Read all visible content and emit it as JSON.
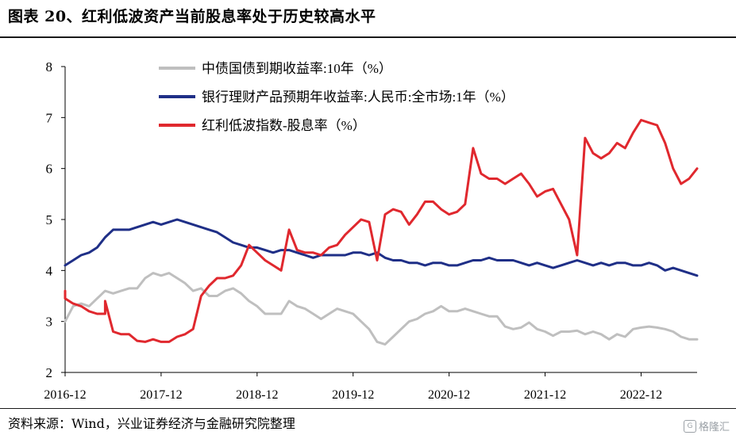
{
  "title": "图表 20、红利低波资产当前股息率处于历史较高水平",
  "source": "资料来源：Wind，兴业证券经济与金融研究院整理",
  "watermark": "格隆汇",
  "chart_data": {
    "type": "line",
    "ylim": [
      2,
      8
    ],
    "yticks": [
      2,
      3,
      4,
      5,
      6,
      7,
      8
    ],
    "xlim": [
      "2016-12",
      "2023-07"
    ],
    "xtick_labels": [
      "2016-12",
      "2017-12",
      "2018-12",
      "2019-12",
      "2020-12",
      "2021-12",
      "2022-12"
    ],
    "legend_position": "top-center",
    "grid": false,
    "series": [
      {
        "name": "中债国债到期收益率:10年（%）",
        "color": "#bfbfbf",
        "points": [
          [
            "2016-12",
            3.0
          ],
          [
            "2017-01",
            3.3
          ],
          [
            "2017-02",
            3.35
          ],
          [
            "2017-03",
            3.3
          ],
          [
            "2017-04",
            3.45
          ],
          [
            "2017-05",
            3.6
          ],
          [
            "2017-06",
            3.55
          ],
          [
            "2017-07",
            3.6
          ],
          [
            "2017-08",
            3.65
          ],
          [
            "2017-09",
            3.65
          ],
          [
            "2017-10",
            3.85
          ],
          [
            "2017-11",
            3.95
          ],
          [
            "2017-12",
            3.9
          ],
          [
            "2018-01",
            3.95
          ],
          [
            "2018-02",
            3.85
          ],
          [
            "2018-03",
            3.75
          ],
          [
            "2018-04",
            3.6
          ],
          [
            "2018-05",
            3.65
          ],
          [
            "2018-06",
            3.5
          ],
          [
            "2018-07",
            3.5
          ],
          [
            "2018-08",
            3.6
          ],
          [
            "2018-09",
            3.65
          ],
          [
            "2018-10",
            3.55
          ],
          [
            "2018-11",
            3.4
          ],
          [
            "2018-12",
            3.3
          ],
          [
            "2019-01",
            3.15
          ],
          [
            "2019-02",
            3.15
          ],
          [
            "2019-03",
            3.15
          ],
          [
            "2019-04",
            3.4
          ],
          [
            "2019-05",
            3.3
          ],
          [
            "2019-06",
            3.25
          ],
          [
            "2019-07",
            3.15
          ],
          [
            "2019-08",
            3.05
          ],
          [
            "2019-09",
            3.15
          ],
          [
            "2019-10",
            3.25
          ],
          [
            "2019-11",
            3.2
          ],
          [
            "2019-12",
            3.15
          ],
          [
            "2020-01",
            3.0
          ],
          [
            "2020-02",
            2.85
          ],
          [
            "2020-03",
            2.6
          ],
          [
            "2020-04",
            2.55
          ],
          [
            "2020-05",
            2.7
          ],
          [
            "2020-06",
            2.85
          ],
          [
            "2020-07",
            3.0
          ],
          [
            "2020-08",
            3.05
          ],
          [
            "2020-09",
            3.15
          ],
          [
            "2020-10",
            3.2
          ],
          [
            "2020-11",
            3.3
          ],
          [
            "2020-12",
            3.2
          ],
          [
            "2021-01",
            3.2
          ],
          [
            "2021-02",
            3.25
          ],
          [
            "2021-03",
            3.2
          ],
          [
            "2021-04",
            3.15
          ],
          [
            "2021-05",
            3.1
          ],
          [
            "2021-06",
            3.1
          ],
          [
            "2021-07",
            2.9
          ],
          [
            "2021-08",
            2.85
          ],
          [
            "2021-09",
            2.88
          ],
          [
            "2021-10",
            2.98
          ],
          [
            "2021-11",
            2.85
          ],
          [
            "2021-12",
            2.8
          ],
          [
            "2022-01",
            2.72
          ],
          [
            "2022-02",
            2.8
          ],
          [
            "2022-03",
            2.8
          ],
          [
            "2022-04",
            2.82
          ],
          [
            "2022-05",
            2.75
          ],
          [
            "2022-06",
            2.8
          ],
          [
            "2022-07",
            2.75
          ],
          [
            "2022-08",
            2.65
          ],
          [
            "2022-09",
            2.75
          ],
          [
            "2022-10",
            2.7
          ],
          [
            "2022-11",
            2.85
          ],
          [
            "2022-12",
            2.88
          ],
          [
            "2023-01",
            2.9
          ],
          [
            "2023-02",
            2.88
          ],
          [
            "2023-03",
            2.85
          ],
          [
            "2023-04",
            2.8
          ],
          [
            "2023-05",
            2.7
          ],
          [
            "2023-06",
            2.65
          ],
          [
            "2023-07",
            2.65
          ]
        ]
      },
      {
        "name": "银行理财产品预期年收益率:人民币:全市场:1年（%）",
        "color": "#1f2f87",
        "points": [
          [
            "2016-12",
            4.1
          ],
          [
            "2017-01",
            4.2
          ],
          [
            "2017-02",
            4.3
          ],
          [
            "2017-03",
            4.35
          ],
          [
            "2017-04",
            4.45
          ],
          [
            "2017-05",
            4.65
          ],
          [
            "2017-06",
            4.8
          ],
          [
            "2017-07",
            4.8
          ],
          [
            "2017-08",
            4.8
          ],
          [
            "2017-09",
            4.85
          ],
          [
            "2017-10",
            4.9
          ],
          [
            "2017-11",
            4.95
          ],
          [
            "2017-12",
            4.9
          ],
          [
            "2018-01",
            4.95
          ],
          [
            "2018-02",
            5.0
          ],
          [
            "2018-03",
            4.95
          ],
          [
            "2018-04",
            4.9
          ],
          [
            "2018-05",
            4.85
          ],
          [
            "2018-06",
            4.8
          ],
          [
            "2018-07",
            4.75
          ],
          [
            "2018-08",
            4.65
          ],
          [
            "2018-09",
            4.55
          ],
          [
            "2018-10",
            4.5
          ],
          [
            "2018-11",
            4.45
          ],
          [
            "2018-12",
            4.45
          ],
          [
            "2019-01",
            4.4
          ],
          [
            "2019-02",
            4.35
          ],
          [
            "2019-03",
            4.4
          ],
          [
            "2019-04",
            4.4
          ],
          [
            "2019-05",
            4.35
          ],
          [
            "2019-06",
            4.3
          ],
          [
            "2019-07",
            4.25
          ],
          [
            "2019-08",
            4.3
          ],
          [
            "2019-09",
            4.3
          ],
          [
            "2019-10",
            4.3
          ],
          [
            "2019-11",
            4.3
          ],
          [
            "2019-12",
            4.35
          ],
          [
            "2020-01",
            4.35
          ],
          [
            "2020-02",
            4.3
          ],
          [
            "2020-03",
            4.35
          ],
          [
            "2020-04",
            4.25
          ],
          [
            "2020-05",
            4.2
          ],
          [
            "2020-06",
            4.2
          ],
          [
            "2020-07",
            4.15
          ],
          [
            "2020-08",
            4.15
          ],
          [
            "2020-09",
            4.1
          ],
          [
            "2020-10",
            4.15
          ],
          [
            "2020-11",
            4.15
          ],
          [
            "2020-12",
            4.1
          ],
          [
            "2021-01",
            4.1
          ],
          [
            "2021-02",
            4.15
          ],
          [
            "2021-03",
            4.2
          ],
          [
            "2021-04",
            4.2
          ],
          [
            "2021-05",
            4.25
          ],
          [
            "2021-06",
            4.2
          ],
          [
            "2021-07",
            4.2
          ],
          [
            "2021-08",
            4.2
          ],
          [
            "2021-09",
            4.15
          ],
          [
            "2021-10",
            4.1
          ],
          [
            "2021-11",
            4.15
          ],
          [
            "2021-12",
            4.1
          ],
          [
            "2022-01",
            4.05
          ],
          [
            "2022-02",
            4.1
          ],
          [
            "2022-03",
            4.15
          ],
          [
            "2022-04",
            4.2
          ],
          [
            "2022-05",
            4.15
          ],
          [
            "2022-06",
            4.1
          ],
          [
            "2022-07",
            4.15
          ],
          [
            "2022-08",
            4.1
          ],
          [
            "2022-09",
            4.15
          ],
          [
            "2022-10",
            4.15
          ],
          [
            "2022-11",
            4.1
          ],
          [
            "2022-12",
            4.1
          ],
          [
            "2023-01",
            4.15
          ],
          [
            "2023-02",
            4.1
          ],
          [
            "2023-03",
            4.0
          ],
          [
            "2023-04",
            4.05
          ],
          [
            "2023-05",
            4.0
          ],
          [
            "2023-06",
            3.95
          ],
          [
            "2023-07",
            3.9
          ]
        ]
      },
      {
        "name": "红利低波指数-股息率（%）",
        "color": "#e0282e",
        "points": [
          [
            "2016-12",
            3.6
          ],
          [
            "2016-12",
            3.45
          ],
          [
            "2017-01",
            3.35
          ],
          [
            "2017-02",
            3.3
          ],
          [
            "2017-03",
            3.2
          ],
          [
            "2017-04",
            3.15
          ],
          [
            "2017-05",
            3.15
          ],
          [
            "2017-05",
            3.4
          ],
          [
            "2017-06",
            2.8
          ],
          [
            "2017-07",
            2.75
          ],
          [
            "2017-08",
            2.75
          ],
          [
            "2017-09",
            2.62
          ],
          [
            "2017-10",
            2.6
          ],
          [
            "2017-11",
            2.65
          ],
          [
            "2017-12",
            2.6
          ],
          [
            "2018-01",
            2.6
          ],
          [
            "2018-02",
            2.7
          ],
          [
            "2018-03",
            2.75
          ],
          [
            "2018-04",
            2.85
          ],
          [
            "2018-05",
            3.5
          ],
          [
            "2018-06",
            3.7
          ],
          [
            "2018-07",
            3.85
          ],
          [
            "2018-08",
            3.85
          ],
          [
            "2018-09",
            3.9
          ],
          [
            "2018-10",
            4.1
          ],
          [
            "2018-11",
            4.5
          ],
          [
            "2018-12",
            4.35
          ],
          [
            "2019-01",
            4.2
          ],
          [
            "2019-02",
            4.1
          ],
          [
            "2019-03",
            4.0
          ],
          [
            "2019-04",
            4.8
          ],
          [
            "2019-05",
            4.4
          ],
          [
            "2019-06",
            4.35
          ],
          [
            "2019-07",
            4.35
          ],
          [
            "2019-08",
            4.3
          ],
          [
            "2019-09",
            4.45
          ],
          [
            "2019-10",
            4.5
          ],
          [
            "2019-11",
            4.7
          ],
          [
            "2019-12",
            4.85
          ],
          [
            "2020-01",
            5.0
          ],
          [
            "2020-02",
            4.95
          ],
          [
            "2020-03",
            4.2
          ],
          [
            "2020-04",
            5.1
          ],
          [
            "2020-05",
            5.2
          ],
          [
            "2020-06",
            5.15
          ],
          [
            "2020-07",
            4.9
          ],
          [
            "2020-08",
            5.1
          ],
          [
            "2020-09",
            5.35
          ],
          [
            "2020-10",
            5.35
          ],
          [
            "2020-11",
            5.2
          ],
          [
            "2020-12",
            5.1
          ],
          [
            "2021-01",
            5.15
          ],
          [
            "2021-02",
            5.3
          ],
          [
            "2021-03",
            6.4
          ],
          [
            "2021-04",
            5.9
          ],
          [
            "2021-05",
            5.8
          ],
          [
            "2021-06",
            5.8
          ],
          [
            "2021-07",
            5.7
          ],
          [
            "2021-08",
            5.8
          ],
          [
            "2021-09",
            5.9
          ],
          [
            "2021-10",
            5.7
          ],
          [
            "2021-11",
            5.45
          ],
          [
            "2021-12",
            5.55
          ],
          [
            "2022-01",
            5.6
          ],
          [
            "2022-02",
            5.3
          ],
          [
            "2022-03",
            5.0
          ],
          [
            "2022-04",
            4.3
          ],
          [
            "2022-05",
            6.6
          ],
          [
            "2022-06",
            6.3
          ],
          [
            "2022-07",
            6.2
          ],
          [
            "2022-08",
            6.3
          ],
          [
            "2022-09",
            6.5
          ],
          [
            "2022-10",
            6.4
          ],
          [
            "2022-11",
            6.7
          ],
          [
            "2022-12",
            6.95
          ],
          [
            "2023-01",
            6.9
          ],
          [
            "2023-02",
            6.85
          ],
          [
            "2023-03",
            6.5
          ],
          [
            "2023-04",
            6.0
          ],
          [
            "2023-05",
            5.7
          ],
          [
            "2023-06",
            5.8
          ],
          [
            "2023-07",
            6.0
          ]
        ]
      }
    ]
  }
}
